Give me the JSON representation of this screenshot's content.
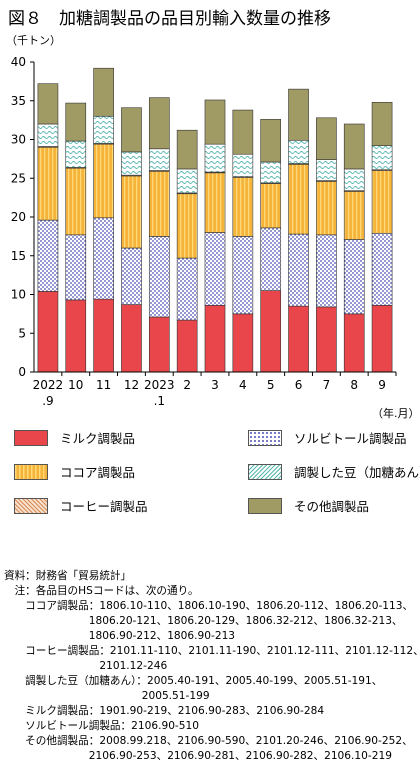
{
  "title": "図８　加糖調製品の品目別輸入数量の推移",
  "chart_data": {
    "type": "bar",
    "stacked": true,
    "unit": "（千トン）",
    "xlabel": "（年.月）",
    "categories": [
      "2022\n.9",
      "10",
      "11",
      "12",
      "2023\n.1",
      "2",
      "3",
      "4",
      "5",
      "6",
      "7",
      "8",
      "9"
    ],
    "ylim": [
      0,
      40
    ],
    "yticks": [
      0,
      5,
      10,
      15,
      20,
      25,
      30,
      35,
      40
    ],
    "grid": false,
    "legend_position": "bottom",
    "series": [
      {
        "name": "ミルク調製品",
        "color": "#e8464a",
        "pattern": "solid",
        "values": [
          10.4,
          9.3,
          9.4,
          8.7,
          7.1,
          6.7,
          8.6,
          7.5,
          10.5,
          8.5,
          8.4,
          7.5,
          8.6
        ]
      },
      {
        "name": "ソルビトール調製品",
        "color": "#6a6fc0",
        "pattern": "dots",
        "values": [
          9.2,
          8.4,
          10.5,
          7.3,
          10.4,
          8.0,
          9.4,
          10.0,
          8.1,
          9.3,
          9.3,
          9.6,
          9.3
        ]
      },
      {
        "name": "ココア調製品",
        "color": "#f6b33a",
        "pattern": "vlines",
        "values": [
          9.4,
          8.6,
          9.5,
          9.3,
          8.4,
          8.3,
          7.7,
          7.6,
          5.7,
          9.0,
          6.9,
          6.2,
          8.1
        ]
      },
      {
        "name": "コーヒー調製品",
        "color": "#d98a55",
        "pattern": "diag",
        "values": [
          0.1,
          0.1,
          0.1,
          0.1,
          0.1,
          0.1,
          0.1,
          0.1,
          0.1,
          0.1,
          0.1,
          0.1,
          0.1
        ]
      },
      {
        "name": "調製した豆（加糖あん）",
        "color": "#58b7b0",
        "pattern": "waves",
        "values": [
          2.9,
          3.4,
          3.5,
          3.0,
          2.8,
          3.1,
          3.6,
          2.9,
          2.7,
          3.0,
          2.7,
          2.8,
          3.1
        ]
      },
      {
        "name": "その他調製品",
        "color": "#a09a64",
        "pattern": "solid",
        "values": [
          5.2,
          4.9,
          6.2,
          5.7,
          6.6,
          5.0,
          5.7,
          5.7,
          5.5,
          6.6,
          5.4,
          5.8,
          5.6
        ]
      }
    ]
  },
  "notes": [
    "資料：財務省「貿易統計」",
    "　注：各品目のHSコードは、次の通り。",
    "　　ココア調製品：1806.10-110、1806.10-190、1806.20-112、1806.20-113、",
    "　　　　　　　　1806.20-121、1806.20-129、1806.32-212、1806.32-213、",
    "　　　　　　　　1806.90-212、1806.90-213",
    "　　コーヒー調製品：2101.11-110、2101.11-190、2101.12-111、2101.12-112、",
    "　　　　　　　　　2101.12-246",
    "　　調製した豆（加糖あん）：2005.40-191、2005.40-199、2005.51-191、",
    "　　　　　　　　　　　　　2005.51-199",
    "　　ミルク調製品：1901.90-219、2106.90-283、2106.90-284",
    "　　ソルビトール調製品：2106.90-510",
    "　　その他調製品：2008.99.218、2106.90-590、2101.20-246、2106.90-252、",
    "　　　　　　　　2106.90-253、2106.90-281、2106.90-282、2106.10-219"
  ]
}
